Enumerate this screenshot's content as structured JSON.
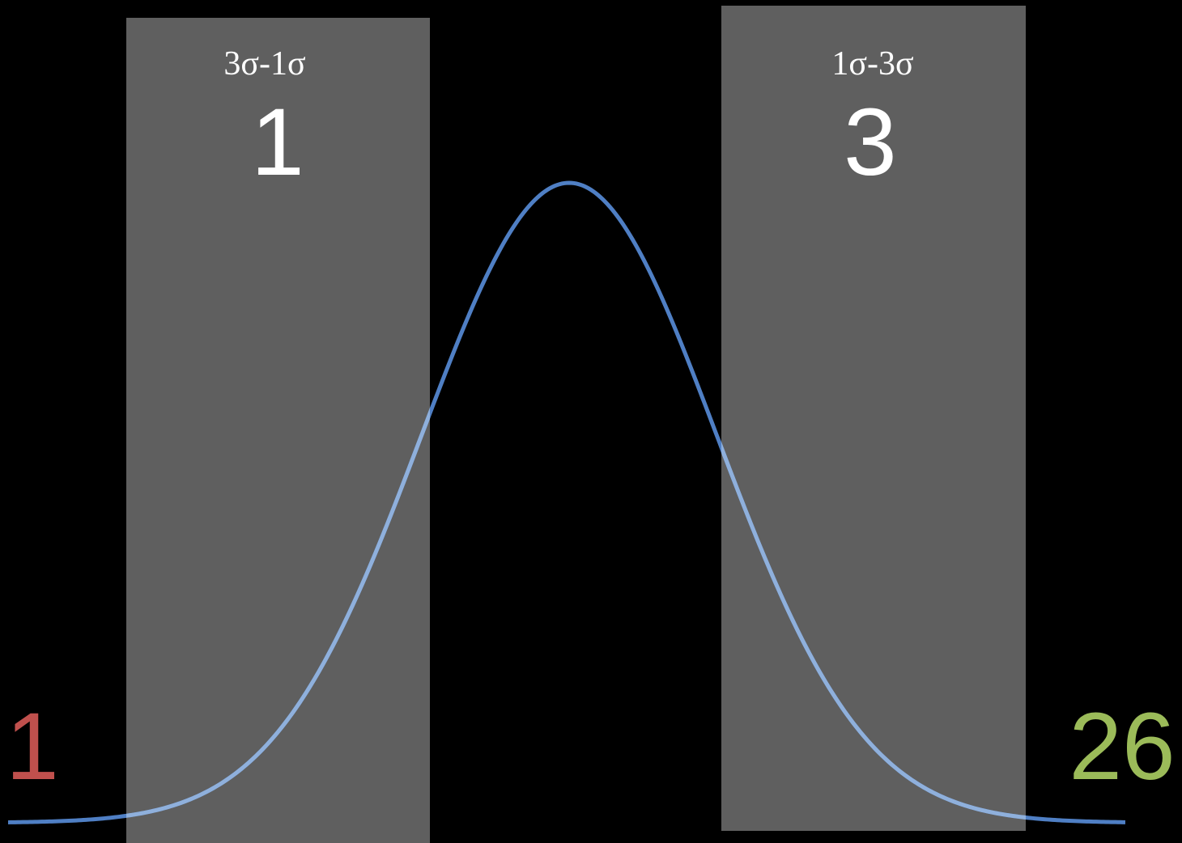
{
  "colors": {
    "background": "#000000",
    "panel": "#5f5f5f",
    "curve": "#4f7fc4",
    "curve_over_panel": "#8fb0dc",
    "white": "#ffffff",
    "left_count": "#c0504d",
    "right_count": "#9bbb59"
  },
  "left_band": {
    "range_label": "3σ-1σ",
    "count": "1"
  },
  "right_band": {
    "range_label": "1σ-3σ",
    "count": "3"
  },
  "left_tail": {
    "count": "1"
  },
  "right_tail": {
    "count": "26"
  }
}
